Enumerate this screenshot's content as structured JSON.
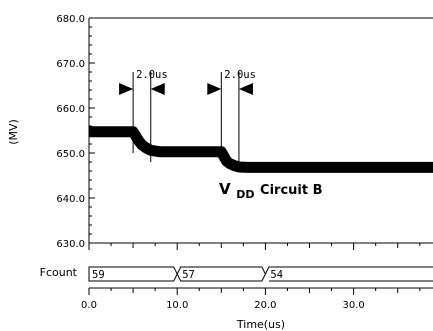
{
  "chart_data": [
    {
      "type": "line",
      "ylabel": "(MV)",
      "ylim": [
        630,
        680
      ],
      "xlim": [
        0,
        39
      ],
      "y_ticks": [
        "630.0",
        "640.0",
        "650.0",
        "660.0",
        "670.0",
        "680.0"
      ],
      "series": [
        {
          "name": "VDD Circuit B",
          "name_main": "V",
          "name_sub": "DD",
          "name_rest": " Circuit B",
          "x": [
            0,
            5,
            5.3,
            5.6,
            6,
            6.5,
            7,
            8,
            10,
            12,
            14,
            15,
            15.3,
            15.6,
            16,
            16.5,
            17,
            18,
            20,
            25,
            30,
            35,
            39
          ],
          "y": [
            654.7,
            654.7,
            653.8,
            652.8,
            651.8,
            651.1,
            650.6,
            650.3,
            650.3,
            650.3,
            650.3,
            650.3,
            649.2,
            648.2,
            647.6,
            647.2,
            646.9,
            646.8,
            646.8,
            646.8,
            646.8,
            646.8,
            646.8
          ]
        }
      ],
      "annotations": [
        {
          "label": "2.0us",
          "x_start": 5.0,
          "x_end": 7.0
        },
        {
          "label": "2.0us",
          "x_start": 15.0,
          "x_end": 17.0
        }
      ]
    },
    {
      "type": "bus",
      "label": "Fcount",
      "segments": [
        {
          "value": "59",
          "x_start": 0,
          "x_end": 10
        },
        {
          "value": "57",
          "x_start": 10,
          "x_end": 20
        },
        {
          "value": "54",
          "x_start": 20,
          "x_end": 39
        }
      ],
      "xlabel": "Time(us)",
      "xlim": [
        0,
        39
      ],
      "x_ticks": [
        "0.0",
        "10.0",
        "20.0",
        "30.0"
      ]
    }
  ]
}
